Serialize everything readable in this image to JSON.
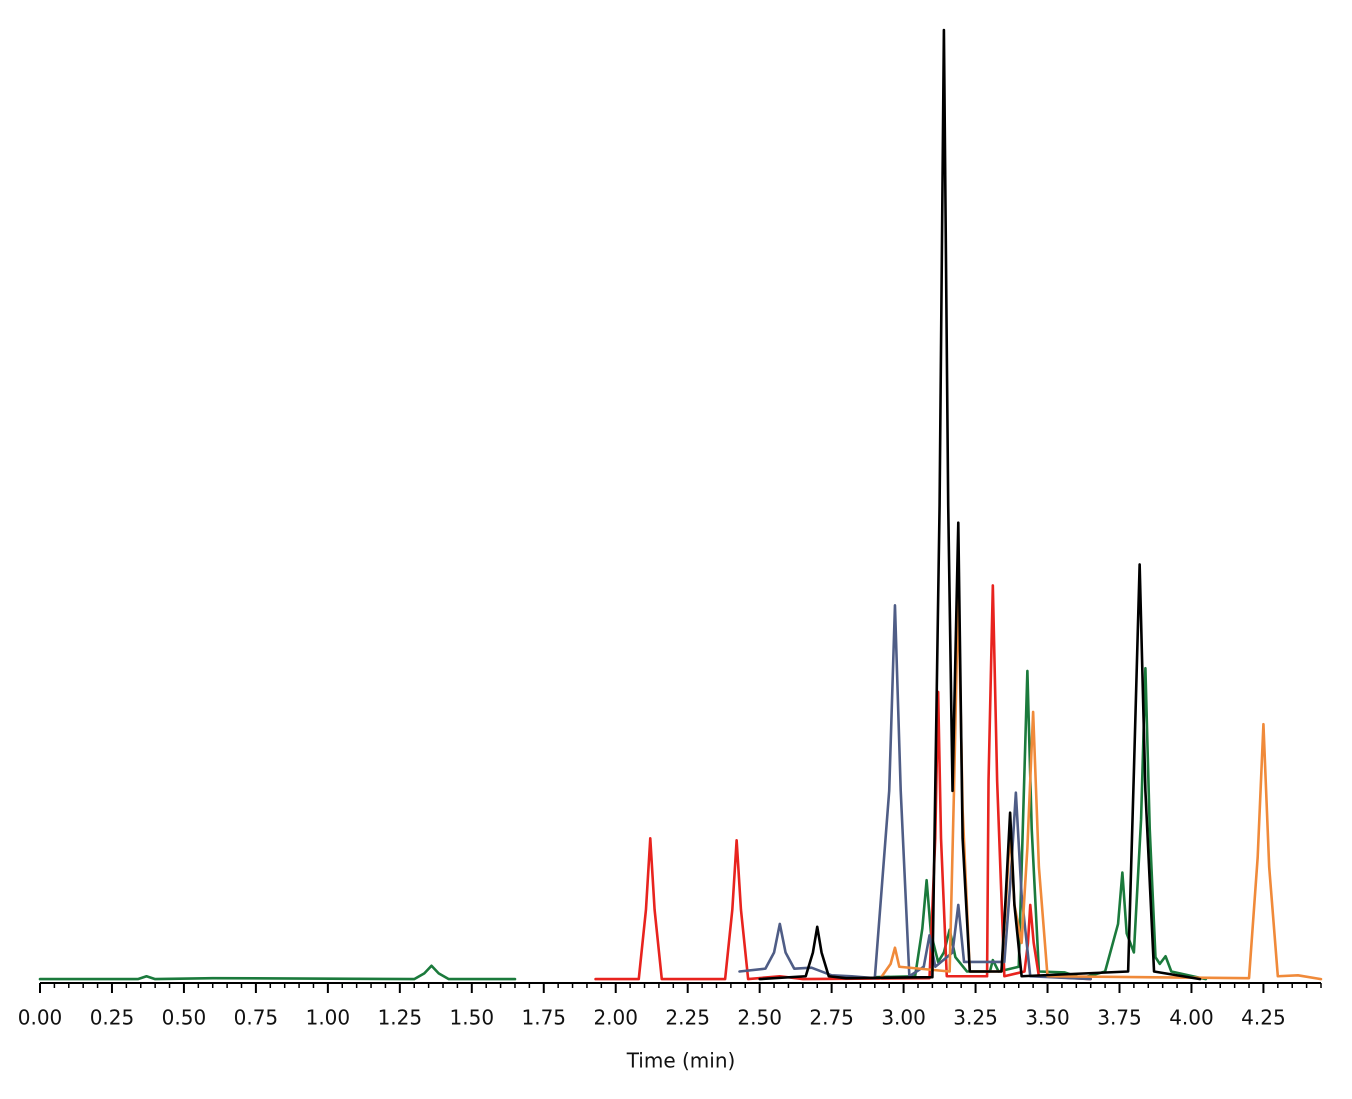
{
  "chart_data": {
    "type": "line",
    "xlabel": "Time (min)",
    "xlim": [
      0,
      4.45
    ],
    "ylim": [
      0,
      100
    ],
    "xticks": [
      {
        "value": 0,
        "label": "0.00"
      },
      {
        "value": 0.25,
        "label": "0.25"
      },
      {
        "value": 0.5,
        "label": "0.50"
      },
      {
        "value": 0.75,
        "label": "0.75"
      },
      {
        "value": 1,
        "label": "1.00"
      },
      {
        "value": 1.25,
        "label": "1.25"
      },
      {
        "value": 1.5,
        "label": "1.50"
      },
      {
        "value": 1.75,
        "label": "1.75"
      },
      {
        "value": 2,
        "label": "2.00"
      },
      {
        "value": 2.25,
        "label": "2.25"
      },
      {
        "value": 2.5,
        "label": "2.50"
      },
      {
        "value": 2.75,
        "label": "2.75"
      },
      {
        "value": 3,
        "label": "3.00"
      },
      {
        "value": 3.25,
        "label": "3.25"
      },
      {
        "value": 3.5,
        "label": "3.50"
      },
      {
        "value": 3.75,
        "label": "3.75"
      },
      {
        "value": 4,
        "label": "4.00"
      },
      {
        "value": 4.25,
        "label": "4.25"
      }
    ],
    "xminorticks": [
      0.05,
      0.1,
      0.15,
      0.2,
      0.3,
      0.35,
      0.4,
      0.45,
      0.55,
      0.6,
      0.65,
      0.7,
      0.8,
      0.85,
      0.9,
      0.95,
      1.05,
      1.1,
      1.15,
      1.2,
      1.3,
      1.35,
      1.4,
      1.45,
      1.55,
      1.6,
      1.65,
      1.7,
      1.8,
      1.85,
      1.9,
      1.95,
      2.05,
      2.1,
      2.15,
      2.2,
      2.3,
      2.35,
      2.4,
      2.45,
      2.55,
      2.6,
      2.65,
      2.7,
      2.8,
      2.85,
      2.9,
      2.95,
      3.05,
      3.1,
      3.15,
      3.2,
      3.3,
      3.35,
      3.4,
      3.45,
      3.55,
      3.6,
      3.65,
      3.7,
      3.8,
      3.85,
      3.9,
      3.95,
      4.05,
      4.1,
      4.15,
      4.2,
      4.3,
      4.35,
      4.4,
      4.45
    ],
    "series": [
      {
        "color": "#1b7a3c",
        "x": [
          0,
          0.34,
          0.37,
          0.4,
          0.6,
          1.3,
          1.335,
          1.36,
          1.385,
          1.42,
          1.65,
          1.78,
          2.9,
          3.04,
          3.065,
          3.08,
          3.095,
          3.12,
          3.14,
          3.16,
          3.18,
          3.22,
          3.3,
          3.31,
          3.33,
          3.4,
          3.415,
          3.43,
          3.445,
          3.47,
          3.56,
          3.62,
          3.7,
          3.745,
          3.76,
          3.775,
          3.8,
          3.825,
          3.84,
          3.855,
          3.875,
          3.89,
          3.91,
          3.93,
          4.05
        ],
        "values": [
          0.2,
          0.2,
          0.5,
          0.2,
          0.3,
          0.2,
          0.8,
          1.6,
          0.8,
          0.2,
          0.2,
          null,
          0.4,
          0.5,
          5.5,
          10.6,
          5,
          2,
          3,
          5.4,
          2.5,
          1,
          1,
          2.2,
          1,
          1.5,
          17,
          32.6,
          16,
          1,
          0.9,
          0.3,
          1,
          6,
          11.4,
          5,
          3,
          17,
          32.9,
          16,
          2.5,
          1.8,
          2.6,
          1,
          0.2
        ]
      },
      {
        "color": "#e8231e",
        "x": [
          1.93,
          2.08,
          2.105,
          2.12,
          2.135,
          2.16,
          2.38,
          2.405,
          2.42,
          2.435,
          2.46,
          2.57,
          2.65,
          3.09,
          3.11,
          3.12,
          3.13,
          3.15,
          3.29,
          3.295,
          3.31,
          3.325,
          3.35,
          3.42,
          3.432,
          3.44,
          3.452,
          3.47,
          3.65
        ],
        "values": [
          0.2,
          0.2,
          7.5,
          15,
          7.5,
          0.2,
          0.2,
          7.5,
          14.8,
          7.5,
          0.2,
          0.5,
          0.2,
          0.3,
          15,
          30.4,
          15,
          0.5,
          0.5,
          21,
          41.6,
          21,
          0.5,
          1,
          4,
          8,
          4,
          0.5,
          0.2
        ]
      },
      {
        "color": "#4f5d86",
        "x": [
          2.43,
          2.52,
          2.55,
          2.57,
          2.59,
          2.62,
          2.68,
          2.75,
          2.82,
          2.9,
          2.95,
          2.97,
          2.99,
          3.02,
          3.07,
          3.09,
          3.11,
          3.17,
          3.19,
          3.21,
          3.35,
          3.37,
          3.39,
          3.41,
          3.44,
          3.65
        ],
        "values": [
          1,
          1.3,
          3,
          6,
          3,
          1.3,
          1.4,
          0.6,
          0.5,
          0.3,
          20,
          39.5,
          20,
          0.5,
          1.5,
          4.8,
          1.5,
          3,
          8,
          2,
          2,
          10,
          19.8,
          9,
          0.5,
          0.2
        ]
      },
      {
        "color": "#f08a3a",
        "x": [
          2.92,
          2.955,
          2.97,
          2.985,
          3.16,
          3.175,
          3.19,
          3.205,
          3.23,
          3.34,
          3.355,
          3.37,
          3.385,
          3.41,
          3.43,
          3.45,
          3.47,
          3.5,
          4.2,
          4.23,
          4.25,
          4.27,
          4.3,
          4.37,
          4.45
        ],
        "values": [
          0.3,
          1.8,
          3.5,
          1.5,
          1,
          20,
          41.5,
          18,
          1,
          1,
          8,
          15.9,
          8,
          4,
          14,
          28.3,
          12,
          0.5,
          0.3,
          13,
          27,
          12,
          0.5,
          0.6,
          0.2
        ]
      },
      {
        "color": "#000000",
        "x": [
          2.5,
          2.66,
          2.685,
          2.7,
          2.715,
          2.74,
          2.8,
          3.1,
          3.125,
          3.14,
          3.155,
          3.17,
          3.19,
          3.205,
          3.23,
          3.34,
          3.355,
          3.37,
          3.385,
          3.41,
          3.78,
          3.8,
          3.82,
          3.84,
          3.87,
          4.03
        ],
        "values": [
          0.2,
          0.5,
          3,
          5.7,
          3,
          0.5,
          0.3,
          0.4,
          50,
          100,
          50,
          20,
          48.2,
          15,
          1,
          1,
          9,
          17.7,
          8,
          0.5,
          1,
          22,
          43.8,
          20,
          1,
          0.2
        ]
      }
    ]
  }
}
